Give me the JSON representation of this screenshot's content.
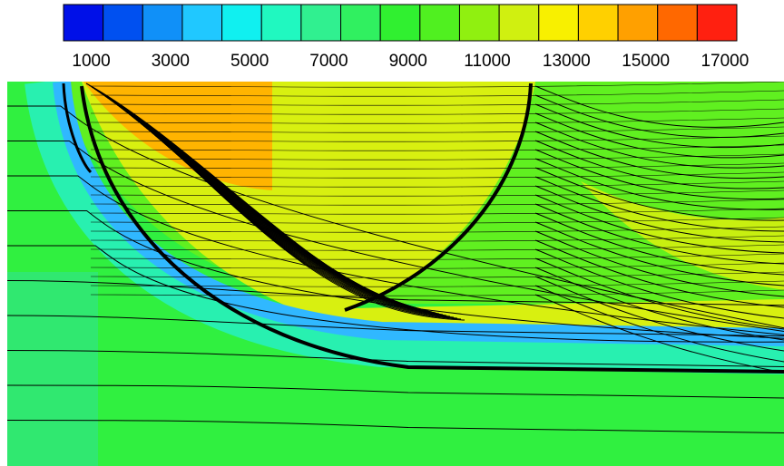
{
  "chart_data": {
    "type": "contour",
    "colorbar": {
      "clim": [
        300,
        17300
      ],
      "ticks": [
        1000,
        3000,
        5000,
        7000,
        9000,
        11000,
        13000,
        15000,
        17000
      ],
      "colors": [
        "#0010e8",
        "#0050f0",
        "#1090f8",
        "#20c8ff",
        "#10f0f0",
        "#20f8c0",
        "#30f090",
        "#30f060",
        "#30f030",
        "#50f020",
        "#90f010",
        "#d0f010",
        "#f8f000",
        "#ffd000",
        "#ffa000",
        "#ff6800",
        "#ff2010"
      ]
    }
  }
}
